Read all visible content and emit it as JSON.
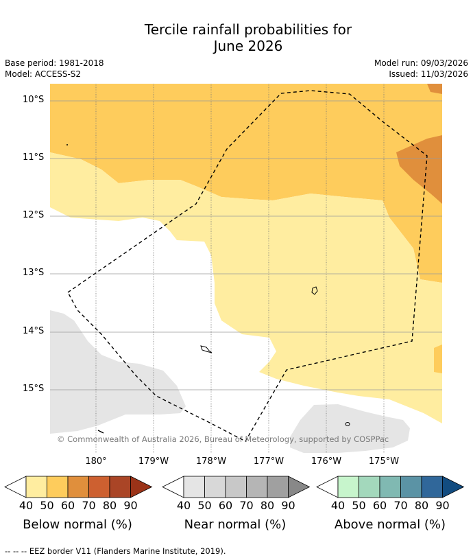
{
  "title_line1": "Tercile rainfall probabilities for",
  "title_line2": "June 2026",
  "base_period": "Base period: 1981-2018",
  "model": "Model: ACCESS-S2",
  "model_run": "Model run: 09/03/2026",
  "issued": "Issued: 11/03/2026",
  "lat_labels": [
    "10°S",
    "11°S",
    "12°S",
    "13°S",
    "14°S",
    "15°S"
  ],
  "lon_labels": [
    "180°",
    "179°W",
    "178°W",
    "177°W",
    "176°W",
    "175°W"
  ],
  "copyright": "© Commonwealth of Australia 2026, Bureau of Meteorology, supported by COSPPac",
  "colorbars": [
    {
      "label": "Below normal (%)",
      "ticks": [
        "40",
        "50",
        "60",
        "70",
        "80",
        "90"
      ],
      "colors": [
        "#ffeda0",
        "#fecc5c",
        "#e08f3c",
        "#cd6030",
        "#aa4526",
        "#9b3318"
      ]
    },
    {
      "label": "Near normal (%)",
      "ticks": [
        "40",
        "50",
        "60",
        "70",
        "80",
        "90"
      ],
      "colors": [
        "#e5e5e5",
        "#d8d8d8",
        "#c8c8c8",
        "#b5b5b5",
        "#a0a0a0",
        "#888888"
      ]
    },
    {
      "label": "Above normal (%)",
      "ticks": [
        "40",
        "50",
        "60",
        "70",
        "80",
        "90"
      ],
      "colors": [
        "#c7f5cc",
        "#a3d8bc",
        "#80b9b2",
        "#5b93a5",
        "#30679a",
        "#124c80"
      ]
    }
  ],
  "footer": "--  --  -- EEZ border V11 (Flanders Marine Institute, 2019).",
  "colors": {
    "below_50": "#fecc5c",
    "below_40": "#ffeda0",
    "below_60": "#e08f3c",
    "near_40": "#e5e5e5"
  }
}
